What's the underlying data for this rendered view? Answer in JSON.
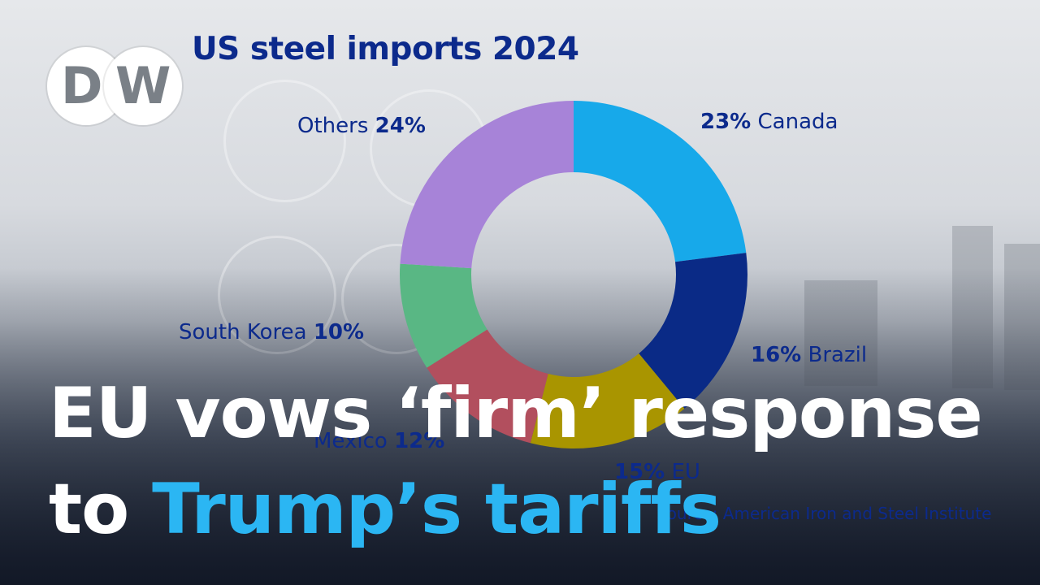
{
  "brand": {
    "logo_letters": [
      "D",
      "W"
    ]
  },
  "chart_data": {
    "type": "pie",
    "subtype": "donut",
    "title": "US steel imports 2024",
    "slices": [
      {
        "label": "Canada",
        "value": 23,
        "display": "23%",
        "color": "#17a9ea"
      },
      {
        "label": "Brazil",
        "value": 16,
        "display": "16%",
        "color": "#0a2a86"
      },
      {
        "label": "EU",
        "value": 15,
        "display": "15%",
        "color": "#a99500"
      },
      {
        "label": "Mexico",
        "value": 12,
        "display": "12%",
        "color": "#b24f5e"
      },
      {
        "label": "South Korea",
        "value": 10,
        "display": "10%",
        "color": "#59b784"
      },
      {
        "label": "Others",
        "value": 24,
        "display": "24%",
        "color": "#a783d8"
      }
    ],
    "source": "Source: American Iron and Steel Institute"
  },
  "headline": {
    "line1": "EU vows ‘firm’ response",
    "line2_plain": "to ",
    "line2_accent": "Trump’s tariffs"
  },
  "colors": {
    "title": "#0c2a8c",
    "accent": "#2bb6f3",
    "headline": "#ffffff"
  }
}
